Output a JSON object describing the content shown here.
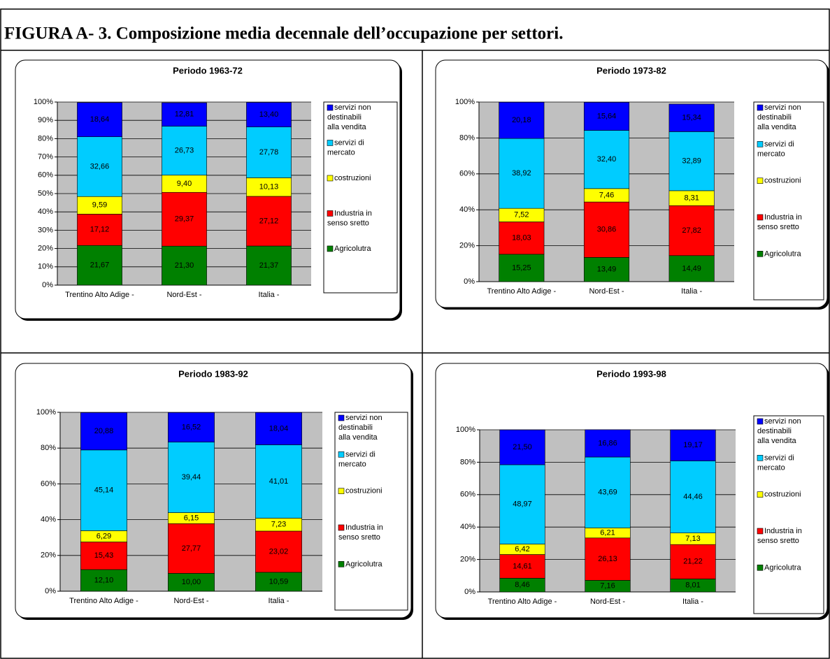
{
  "title": "FIGURA A- 3. Composizione media decennale dell’occupazione per settori.",
  "chart_data": [
    {
      "type": "stacked_bar",
      "title": "Periodo 1963-72",
      "categories": [
        "Trentino Alto Adige -",
        "Nord-Est -",
        "Italia -"
      ],
      "ylim": [
        0,
        100
      ],
      "yticks": [
        {
          "value": 0,
          "label": "0%"
        },
        {
          "value": 10,
          "label": "10%"
        },
        {
          "value": 20,
          "label": "20%"
        },
        {
          "value": 30,
          "label": "30%"
        },
        {
          "value": 40,
          "label": "40%"
        },
        {
          "value": 50,
          "label": "50%"
        },
        {
          "value": 60,
          "label": "60%"
        },
        {
          "value": 70,
          "label": "70%"
        },
        {
          "value": 80,
          "label": "80%"
        },
        {
          "value": 90,
          "label": "90%"
        },
        {
          "value": 100,
          "label": "100%"
        }
      ],
      "grid": true,
      "series": [
        {
          "name": "Agricolutra",
          "color": "#008000",
          "values": [
            21.67,
            21.3,
            21.37
          ],
          "value_labels": [
            "21,67",
            "21,30",
            "21,37"
          ]
        },
        {
          "name": "Industria in senso sretto",
          "color": "#ff0000",
          "values": [
            17.12,
            29.37,
            27.12
          ],
          "value_labels": [
            "17,12",
            "29,37",
            "27,12"
          ]
        },
        {
          "name": "costruzioni",
          "color": "#ffff00",
          "values": [
            9.59,
            9.4,
            10.13
          ],
          "value_labels": [
            "9,59",
            "9,40",
            "10,13"
          ]
        },
        {
          "name": "servizi di mercato",
          "color": "#00ccff",
          "values": [
            32.66,
            26.73,
            27.78
          ],
          "value_labels": [
            "32,66",
            "26,73",
            "27,78"
          ]
        },
        {
          "name": "servizi non destinabili alla vendita",
          "color": "#0000ff",
          "values": [
            18.64,
            12.81,
            13.4
          ],
          "value_labels": [
            "18,64",
            "12,81",
            "13,40"
          ]
        }
      ]
    },
    {
      "type": "stacked_bar",
      "title": "Periodo 1973-82",
      "categories": [
        "Trentino Alto Adige -",
        "Nord-Est -",
        "Italia -"
      ],
      "ylim": [
        0,
        100
      ],
      "yticks": [
        {
          "value": 0,
          "label": "0%"
        },
        {
          "value": 20,
          "label": "20%"
        },
        {
          "value": 40,
          "label": "40%"
        },
        {
          "value": 60,
          "label": "60%"
        },
        {
          "value": 80,
          "label": "80%"
        },
        {
          "value": 100,
          "label": "100%"
        }
      ],
      "grid": true,
      "series": [
        {
          "name": "Agricolutra",
          "color": "#008000",
          "values": [
            15.25,
            13.49,
            14.49
          ],
          "value_labels": [
            "15,25",
            "13,49",
            "14,49"
          ]
        },
        {
          "name": "Industria in senso sretto",
          "color": "#ff0000",
          "values": [
            18.03,
            30.86,
            27.82
          ],
          "value_labels": [
            "18,03",
            "30,86",
            "27,82"
          ]
        },
        {
          "name": "costruzioni",
          "color": "#ffff00",
          "values": [
            7.52,
            7.46,
            8.31
          ],
          "value_labels": [
            "7,52",
            "7,46",
            "8,31"
          ]
        },
        {
          "name": "servizi di mercato",
          "color": "#00ccff",
          "values": [
            38.92,
            32.4,
            32.89
          ],
          "value_labels": [
            "38,92",
            "32,40",
            "32,89"
          ]
        },
        {
          "name": "servizi non destinabili alla vendita",
          "color": "#0000ff",
          "values": [
            20.18,
            15.64,
            15.34
          ],
          "value_labels": [
            "20,18",
            "15,64",
            "15,34"
          ]
        }
      ]
    },
    {
      "type": "stacked_bar",
      "title": "Periodo 1983-92",
      "categories": [
        "Trentino Alto Adige -",
        "Nord-Est -",
        "Italia -"
      ],
      "ylim": [
        0,
        100
      ],
      "yticks": [
        {
          "value": 0,
          "label": "0%"
        },
        {
          "value": 20,
          "label": "20%"
        },
        {
          "value": 40,
          "label": "40%"
        },
        {
          "value": 60,
          "label": "60%"
        },
        {
          "value": 80,
          "label": "80%"
        },
        {
          "value": 100,
          "label": "100%"
        }
      ],
      "grid": true,
      "series": [
        {
          "name": "Agricolutra",
          "color": "#008000",
          "values": [
            12.1,
            10.0,
            10.59
          ],
          "value_labels": [
            "12,10",
            "10,00",
            "10,59"
          ]
        },
        {
          "name": "Industria in senso sretto",
          "color": "#ff0000",
          "values": [
            15.43,
            27.77,
            23.02
          ],
          "value_labels": [
            "15,43",
            "27,77",
            "23,02"
          ]
        },
        {
          "name": "costruzioni",
          "color": "#ffff00",
          "values": [
            6.29,
            6.15,
            7.23
          ],
          "value_labels": [
            "6,29",
            "6,15",
            "7,23"
          ]
        },
        {
          "name": "servizi di mercato",
          "color": "#00ccff",
          "values": [
            45.14,
            39.44,
            41.01
          ],
          "value_labels": [
            "45,14",
            "39,44",
            "41,01"
          ]
        },
        {
          "name": "servizi non destinabili alla vendita",
          "color": "#0000ff",
          "values": [
            20.88,
            16.52,
            18.04
          ],
          "value_labels": [
            "20,88",
            "16,52",
            "18,04"
          ]
        }
      ]
    },
    {
      "type": "stacked_bar",
      "title": "Periodo 1993-98",
      "categories": [
        "Trentino Alto Adige -",
        "Nord-Est -",
        "Italia -"
      ],
      "ylim": [
        0,
        100
      ],
      "yticks": [
        {
          "value": 0,
          "label": "0%"
        },
        {
          "value": 20,
          "label": "20%"
        },
        {
          "value": 40,
          "label": "40%"
        },
        {
          "value": 60,
          "label": "60%"
        },
        {
          "value": 80,
          "label": "80%"
        },
        {
          "value": 100,
          "label": "100%"
        }
      ],
      "grid": true,
      "series": [
        {
          "name": "Agricolutra",
          "color": "#008000",
          "values": [
            8.46,
            7.16,
            8.01
          ],
          "value_labels": [
            "8,46",
            "7,16",
            "8,01"
          ]
        },
        {
          "name": "Industria in senso sretto",
          "color": "#ff0000",
          "values": [
            14.61,
            26.13,
            21.22
          ],
          "value_labels": [
            "14,61",
            "26,13",
            "21,22"
          ]
        },
        {
          "name": "costruzioni",
          "color": "#ffff00",
          "values": [
            6.42,
            6.21,
            7.13
          ],
          "value_labels": [
            "6,42",
            "6,21",
            "7,13"
          ]
        },
        {
          "name": "servizi di mercato",
          "color": "#00ccff",
          "values": [
            48.97,
            43.69,
            44.46
          ],
          "value_labels": [
            "48,97",
            "43,69",
            "44,46"
          ]
        },
        {
          "name": "servizi non destinabili alla vendita",
          "color": "#0000ff",
          "values": [
            21.5,
            16.86,
            19.17
          ],
          "value_labels": [
            "21,50",
            "16,86",
            "19,17"
          ]
        }
      ]
    }
  ]
}
